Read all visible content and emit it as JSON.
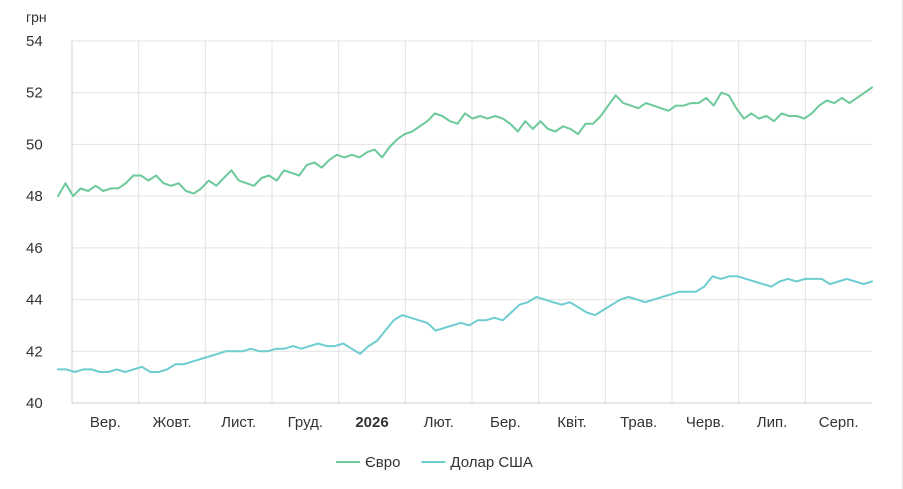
{
  "chart_data": {
    "type": "line",
    "title": "",
    "ylabel": "грн",
    "xlabel": "",
    "ylim": [
      40,
      54
    ],
    "yticks": [
      40,
      42,
      44,
      46,
      48,
      50,
      52,
      54
    ],
    "x_ticks": [
      {
        "label": "Вер.",
        "bold": false
      },
      {
        "label": "Жовт.",
        "bold": false
      },
      {
        "label": "Лист.",
        "bold": false
      },
      {
        "label": "Груд.",
        "bold": false
      },
      {
        "label": "2026",
        "bold": true
      },
      {
        "label": "Лют.",
        "bold": false
      },
      {
        "label": "Бер.",
        "bold": false
      },
      {
        "label": "Квіт.",
        "bold": false
      },
      {
        "label": "Трав.",
        "bold": false
      },
      {
        "label": "Черв.",
        "bold": false
      },
      {
        "label": "Лип.",
        "bold": false
      },
      {
        "label": "Серп.",
        "bold": false
      }
    ],
    "grid": true,
    "legend": "bottom-center",
    "series": [
      {
        "name": "Євро",
        "color": "#6cc99a",
        "values": [
          48.0,
          48.5,
          48.0,
          48.3,
          48.2,
          48.4,
          48.2,
          48.3,
          48.3,
          48.5,
          48.8,
          48.8,
          48.6,
          48.8,
          48.5,
          48.4,
          48.5,
          48.2,
          48.1,
          48.3,
          48.6,
          48.4,
          48.7,
          49.0,
          48.6,
          48.5,
          48.4,
          48.7,
          48.8,
          48.6,
          49.0,
          48.9,
          48.8,
          49.2,
          49.3,
          49.1,
          49.4,
          49.6,
          49.5,
          49.6,
          49.5,
          49.7,
          49.8,
          49.5,
          49.9,
          50.2,
          50.4,
          50.5,
          50.7,
          50.9,
          51.2,
          51.1,
          50.9,
          50.8,
          51.2,
          51.0,
          51.1,
          51.0,
          51.1,
          51.0,
          50.8,
          50.5,
          50.9,
          50.6,
          50.9,
          50.6,
          50.5,
          50.7,
          50.6,
          50.4,
          50.8,
          50.8,
          51.1,
          51.5,
          51.9,
          51.6,
          51.5,
          51.4,
          51.6,
          51.5,
          51.4,
          51.3,
          51.5,
          51.5,
          51.6,
          51.6,
          51.8,
          51.5,
          52.0,
          51.9,
          51.4,
          51.0,
          51.2,
          51.0,
          51.1,
          50.9,
          51.2,
          51.1,
          51.1,
          51.0,
          51.2,
          51.5,
          51.7,
          51.6,
          51.8,
          51.6,
          51.8,
          52.0,
          52.2
        ]
      },
      {
        "name": "Долар США",
        "color": "#6dcdd0",
        "values": [
          41.3,
          41.3,
          41.2,
          41.3,
          41.3,
          41.2,
          41.2,
          41.3,
          41.2,
          41.3,
          41.4,
          41.2,
          41.2,
          41.3,
          41.5,
          41.5,
          41.6,
          41.7,
          41.8,
          41.9,
          42.0,
          42.0,
          42.0,
          42.1,
          42.0,
          42.0,
          42.1,
          42.1,
          42.2,
          42.1,
          42.2,
          42.3,
          42.2,
          42.2,
          42.3,
          42.1,
          41.9,
          42.2,
          42.4,
          42.8,
          43.2,
          43.4,
          43.3,
          43.2,
          43.1,
          42.8,
          42.9,
          43.0,
          43.1,
          43.0,
          43.2,
          43.2,
          43.3,
          43.2,
          43.5,
          43.8,
          43.9,
          44.1,
          44.0,
          43.9,
          43.8,
          43.9,
          43.7,
          43.5,
          43.4,
          43.6,
          43.8,
          44.0,
          44.1,
          44.0,
          43.9,
          44.0,
          44.1,
          44.2,
          44.3,
          44.3,
          44.3,
          44.5,
          44.9,
          44.8,
          44.9,
          44.9,
          44.8,
          44.7,
          44.6,
          44.5,
          44.7,
          44.8,
          44.7,
          44.8,
          44.8,
          44.8,
          44.6,
          44.7,
          44.8,
          44.7,
          44.6,
          44.7
        ]
      }
    ]
  }
}
